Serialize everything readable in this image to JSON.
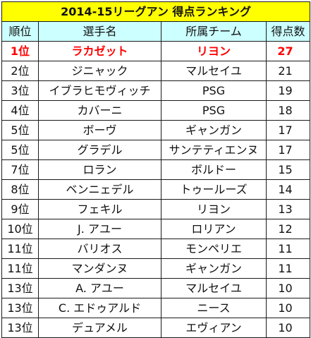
{
  "title": "2014-15リーグアン 得点ランキング",
  "headers": {
    "rank": "順位",
    "player": "選手名",
    "team": "所属チーム",
    "goals": "得点数"
  },
  "highlight_color": "#ff0000",
  "title_background": "#ffff00",
  "header_background": "#ccffff",
  "rows": [
    {
      "rank": "1位",
      "player": "ラカゼット",
      "team": "リヨン",
      "goals": "27"
    },
    {
      "rank": "2位",
      "player": "ジニャック",
      "team": "マルセイユ",
      "goals": "21"
    },
    {
      "rank": "3位",
      "player": "イブラヒモヴィッチ",
      "team": "PSG",
      "goals": "19"
    },
    {
      "rank": "4位",
      "player": "カバーニ",
      "team": "PSG",
      "goals": "18"
    },
    {
      "rank": "5位",
      "player": "ボーヴ",
      "team": "ギャンガン",
      "goals": "17"
    },
    {
      "rank": "5位",
      "player": "グラデル",
      "team": "サンテティエンヌ",
      "goals": "17"
    },
    {
      "rank": "7位",
      "player": "ロラン",
      "team": "ボルドー",
      "goals": "15"
    },
    {
      "rank": "8位",
      "player": "ベンニェデル",
      "team": "トゥールーズ",
      "goals": "14"
    },
    {
      "rank": "9位",
      "player": "フェキル",
      "team": "リヨン",
      "goals": "13"
    },
    {
      "rank": "10位",
      "player": "J. アユー",
      "team": "ロリアン",
      "goals": "12"
    },
    {
      "rank": "11位",
      "player": "バリオス",
      "team": "モンペリエ",
      "goals": "11"
    },
    {
      "rank": "11位",
      "player": "マンダンヌ",
      "team": "ギャンガン",
      "goals": "11"
    },
    {
      "rank": "13位",
      "player": "A. アユー",
      "team": "マルセイユ",
      "goals": "10"
    },
    {
      "rank": "13位",
      "player": "C. エドゥアルド",
      "team": "ニース",
      "goals": "10"
    },
    {
      "rank": "13位",
      "player": "デュアメル",
      "team": "エヴィアン",
      "goals": "10"
    }
  ]
}
